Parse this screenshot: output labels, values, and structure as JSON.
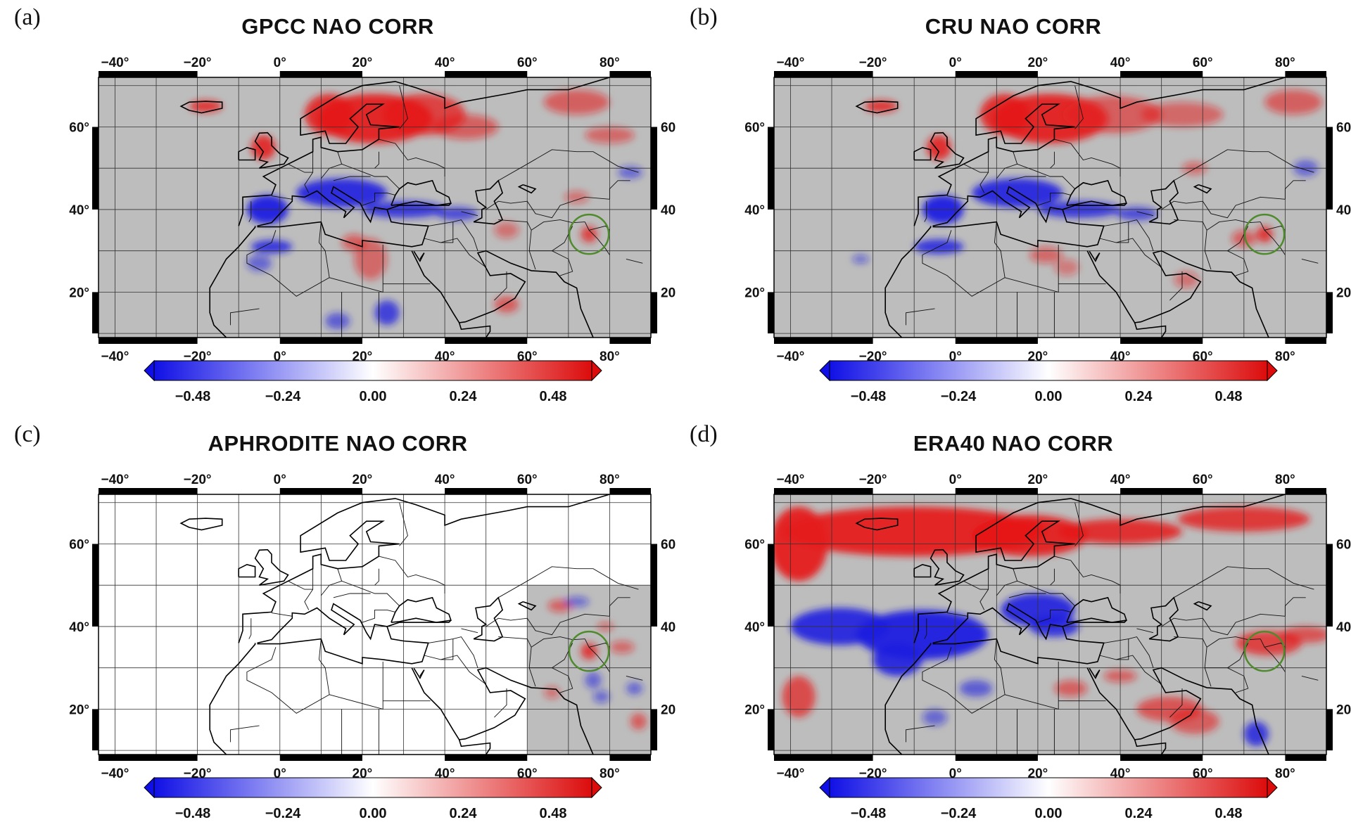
{
  "panels": [
    {
      "letter": "(a)",
      "title": "GPCC NAO CORR",
      "dataset": "GPCC"
    },
    {
      "letter": "(b)",
      "title": "CRU NAO CORR",
      "dataset": "CRU"
    },
    {
      "letter": "(c)",
      "title": "APHRODITE NAO CORR",
      "dataset": "APHRODITE"
    },
    {
      "letter": "(d)",
      "title": "ERA40 NAO CORR",
      "dataset": "ERA40"
    }
  ],
  "axis": {
    "lon_ticks": [
      "−40°",
      "−20°",
      "0°",
      "20°",
      "40°",
      "60°",
      "80°"
    ],
    "lat_ticks": [
      "60°",
      "40°",
      "20°"
    ]
  },
  "colorbar": {
    "labels": [
      "−0.48",
      "−0.24",
      "0.00",
      "0.24",
      "0.48"
    ],
    "colors": {
      "negative": "#1010e6",
      "neutral": "#ffffff",
      "positive": "#dc0c0c"
    }
  },
  "colors": {
    "land_mask": "#bdbdbd",
    "positive": "#e51a1a",
    "negative": "#1c1ce0",
    "circle": "#4f8a2c"
  }
}
